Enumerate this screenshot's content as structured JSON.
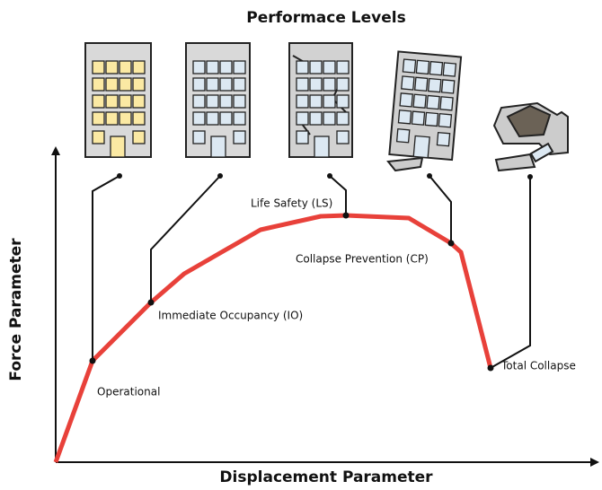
{
  "title": "Performace Levels",
  "x_axis_label": "Displacement Parameter",
  "y_axis_label": "Force Parameter",
  "levels": [
    {
      "label": "Operational"
    },
    {
      "label": "Immediate Occupancy (IO)"
    },
    {
      "label": "Life Safety (LS)"
    },
    {
      "label": "Collapse Prevention (CP)"
    },
    {
      "label": "Total Collapse"
    }
  ]
}
